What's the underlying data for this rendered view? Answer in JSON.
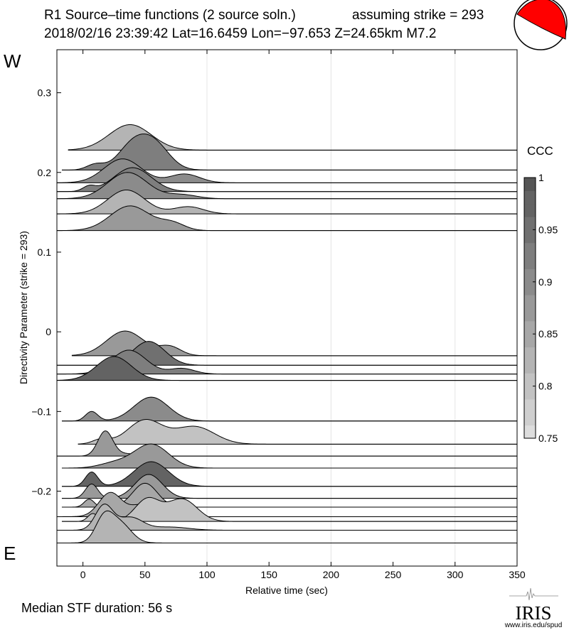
{
  "header": {
    "title": "R1 Source–time functions (2 source soln.)",
    "strike_note": "assuming strike = 293",
    "event_line": "2018/02/16 23:39:42  Lat=16.6459 Lon=−97.653  Z=24.65km  M7.2"
  },
  "labels": {
    "west": "W",
    "east": "E",
    "median": "Median STF duration: 56 s",
    "logo": "IRIS",
    "logo_url": "www.iris.edu/spud"
  },
  "colors": {
    "beachball": "#ff0000"
  },
  "chart_data": {
    "type": "line",
    "xlabel": "Relative time (sec)",
    "ylabel": "Directivity Parameter (strike = 293)",
    "xlim": [
      -21,
      350
    ],
    "ylim": [
      -0.294,
      0.354
    ],
    "xticks": [
      0,
      50,
      100,
      150,
      200,
      250,
      300,
      350
    ],
    "yticks": [
      0.3,
      0.2,
      0.1,
      0,
      -0.1,
      -0.2
    ],
    "ytick_labels": [
      "0.3",
      "0.2",
      "0.1",
      "0",
      "−0.1",
      "−0.2"
    ],
    "grid_x": [
      100,
      200,
      300
    ],
    "colorbar": {
      "label": "CCC",
      "range": [
        0.75,
        1
      ],
      "ticks": [
        1,
        0.95,
        0.9,
        0.85,
        0.8,
        0.75
      ]
    },
    "traces": [
      {
        "y": 0.228,
        "start": -12,
        "ccc": 0.82,
        "pulses": [
          [
            38,
            0.032,
            17
          ]
        ]
      },
      {
        "y": 0.203,
        "start": -17,
        "ccc": 0.93,
        "pulses": [
          [
            40,
            0.03,
            12
          ],
          [
            58,
            0.03,
            12
          ],
          [
            10,
            0.007,
            7
          ]
        ]
      },
      {
        "y": 0.187,
        "start": -21,
        "ccc": 0.9,
        "pulses": [
          [
            32,
            0.03,
            15
          ],
          [
            82,
            0.011,
            12
          ]
        ]
      },
      {
        "y": 0.176,
        "start": -21,
        "ccc": 0.92,
        "pulses": [
          [
            40,
            0.03,
            15
          ],
          [
            5,
            0.006,
            5
          ]
        ]
      },
      {
        "y": 0.167,
        "start": -21,
        "ccc": 0.9,
        "pulses": [
          [
            36,
            0.033,
            16
          ],
          [
            80,
            0.005,
            12
          ]
        ]
      },
      {
        "y": 0.148,
        "start": -21,
        "ccc": 0.83,
        "pulses": [
          [
            35,
            0.03,
            15
          ],
          [
            85,
            0.009,
            12
          ]
        ]
      },
      {
        "y": 0.127,
        "start": -21,
        "ccc": 0.88,
        "pulses": [
          [
            38,
            0.031,
            16
          ],
          [
            72,
            0.009,
            10
          ]
        ]
      },
      {
        "y": -0.03,
        "start": -9,
        "ccc": 0.87,
        "pulses": [
          [
            34,
            0.031,
            15
          ],
          [
            70,
            0.011,
            9
          ]
        ]
      },
      {
        "y": -0.042,
        "start": -21,
        "ccc": 0.95,
        "pulses": [
          [
            53,
            0.03,
            13
          ]
        ]
      },
      {
        "y": -0.053,
        "start": -21,
        "ccc": 0.93,
        "pulses": [
          [
            37,
            0.03,
            14
          ],
          [
            80,
            0.007,
            10
          ]
        ]
      },
      {
        "y": -0.061,
        "start": -21,
        "ccc": 0.97,
        "pulses": [
          [
            25,
            0.03,
            14
          ]
        ]
      },
      {
        "y": -0.112,
        "start": -17,
        "ccc": 0.9,
        "pulses": [
          [
            7,
            0.012,
            5
          ],
          [
            55,
            0.03,
            14
          ]
        ]
      },
      {
        "y": -0.141,
        "start": -4,
        "ccc": 0.81,
        "pulses": [
          [
            50,
            0.03,
            14
          ],
          [
            90,
            0.022,
            16
          ],
          [
            15,
            0.006,
            7
          ]
        ]
      },
      {
        "y": -0.156,
        "start": -21,
        "ccc": 0.87,
        "pulses": [
          [
            18,
            0.031,
            6
          ],
          [
            35,
            0.003,
            10
          ]
        ]
      },
      {
        "y": -0.171,
        "start": -17,
        "ccc": 0.88,
        "pulses": [
          [
            55,
            0.03,
            14
          ],
          [
            25,
            0.006,
            12
          ]
        ]
      },
      {
        "y": -0.194,
        "start": -17,
        "ccc": 0.97,
        "pulses": [
          [
            7,
            0.018,
            5
          ],
          [
            55,
            0.031,
            14
          ]
        ]
      },
      {
        "y": -0.209,
        "start": -17,
        "ccc": 0.88,
        "pulses": [
          [
            7,
            0.018,
            5
          ],
          [
            53,
            0.03,
            11
          ]
        ]
      },
      {
        "y": -0.22,
        "start": -17,
        "ccc": 0.86,
        "pulses": [
          [
            5,
            0.01,
            4
          ],
          [
            50,
            0.03,
            10
          ]
        ]
      },
      {
        "y": -0.232,
        "start": -21,
        "ccc": 0.84,
        "pulses": [
          [
            22,
            0.03,
            9
          ],
          [
            48,
            0.015,
            10
          ]
        ]
      },
      {
        "y": -0.238,
        "start": -17,
        "ccc": 0.81,
        "pulses": [
          [
            52,
            0.028,
            10
          ],
          [
            80,
            0.028,
            12
          ],
          [
            8,
            0.01,
            4
          ]
        ]
      },
      {
        "y": -0.249,
        "start": -21,
        "ccc": 0.82,
        "pulses": [
          [
            17,
            0.031,
            7
          ],
          [
            38,
            0.016,
            10
          ],
          [
            70,
            0.004,
            15
          ]
        ]
      },
      {
        "y": -0.265,
        "start": -21,
        "ccc": 0.82,
        "pulses": [
          [
            17,
            0.03,
            7
          ],
          [
            30,
            0.024,
            9
          ]
        ]
      }
    ]
  }
}
